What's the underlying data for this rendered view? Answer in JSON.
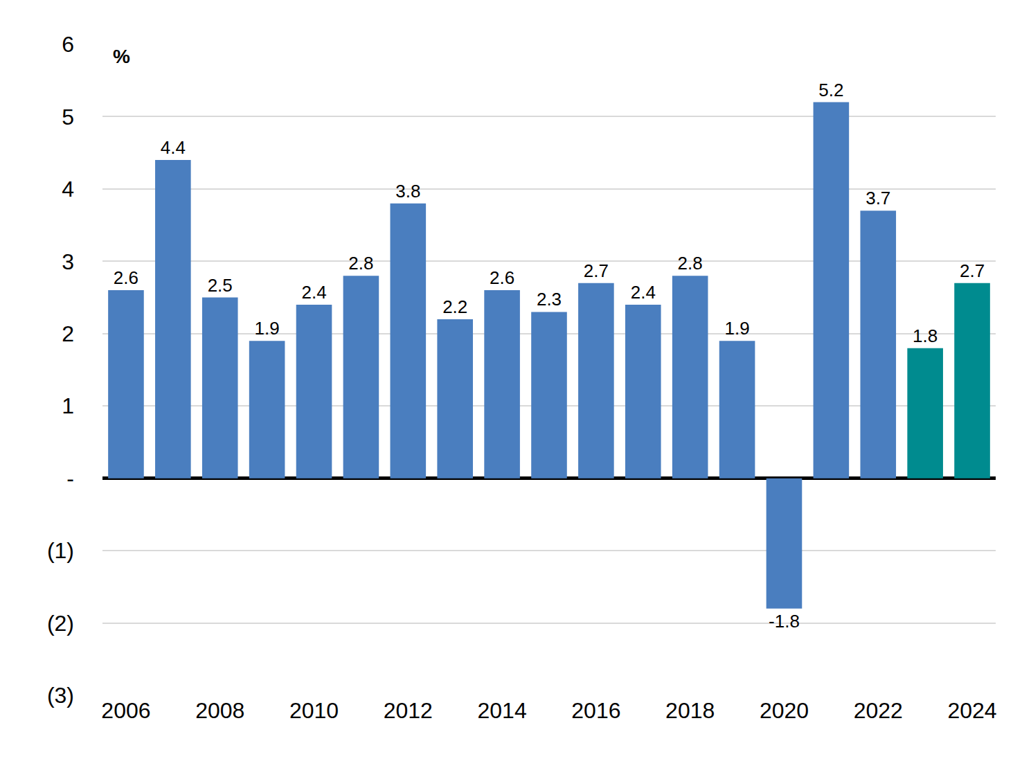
{
  "chart_data": {
    "type": "bar",
    "ylabel": "%",
    "categories": [
      "2006",
      null,
      "2008",
      null,
      "2010",
      null,
      "2012",
      null,
      "2014",
      null,
      "2016",
      null,
      "2018",
      null,
      "2020",
      null,
      "2022",
      null,
      "2024"
    ],
    "values": [
      2.6,
      4.4,
      2.5,
      1.9,
      2.4,
      2.8,
      3.8,
      2.2,
      2.6,
      2.3,
      2.7,
      2.4,
      2.8,
      1.9,
      -1.8,
      5.2,
      3.7,
      1.8,
      2.7
    ],
    "colors": [
      "#4a7ebf",
      "#4a7ebf",
      "#4a7ebf",
      "#4a7ebf",
      "#4a7ebf",
      "#4a7ebf",
      "#4a7ebf",
      "#4a7ebf",
      "#4a7ebf",
      "#4a7ebf",
      "#4a7ebf",
      "#4a7ebf",
      "#4a7ebf",
      "#4a7ebf",
      "#4a7ebf",
      "#4a7ebf",
      "#4a7ebf",
      "#008b8f",
      "#008b8f"
    ],
    "ylim": [
      -3,
      6
    ],
    "yticks": [
      {
        "value": -3,
        "label": "(3)"
      },
      {
        "value": -2,
        "label": "(2)"
      },
      {
        "value": -1,
        "label": "(1)"
      },
      {
        "value": 0,
        "label": "-"
      },
      1,
      2,
      3,
      4,
      5,
      6
    ],
    "grid": true,
    "data_labels": true
  }
}
